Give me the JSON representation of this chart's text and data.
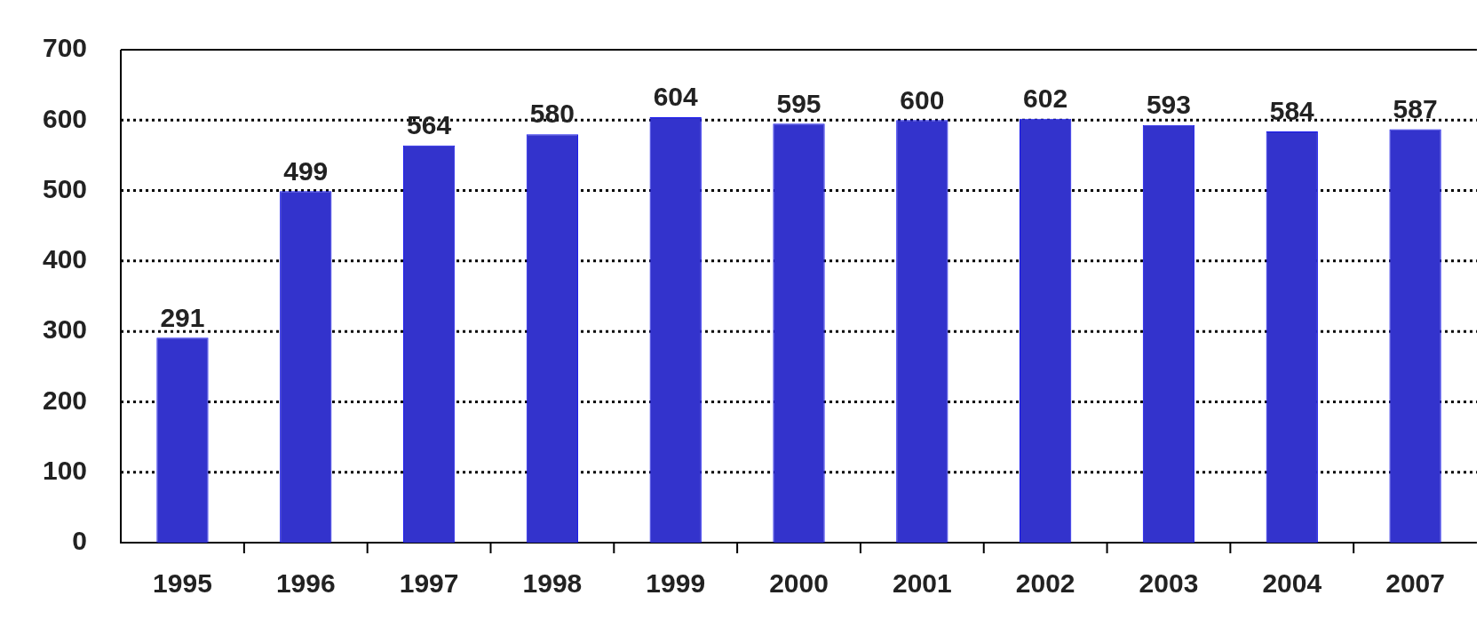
{
  "chart_data": {
    "type": "bar",
    "categories": [
      "1995",
      "1996",
      "1997",
      "1998",
      "1999",
      "2000",
      "2001",
      "2002",
      "2003",
      "2004",
      "2007"
    ],
    "values": [
      291,
      499,
      564,
      580,
      604,
      595,
      600,
      602,
      593,
      584,
      587
    ],
    "color": "#3333cc",
    "ylim": [
      0,
      700
    ],
    "yticks": [
      0,
      100,
      200,
      300,
      400,
      500,
      600,
      700
    ],
    "grid": "y",
    "data_labels": true,
    "legend": false
  }
}
